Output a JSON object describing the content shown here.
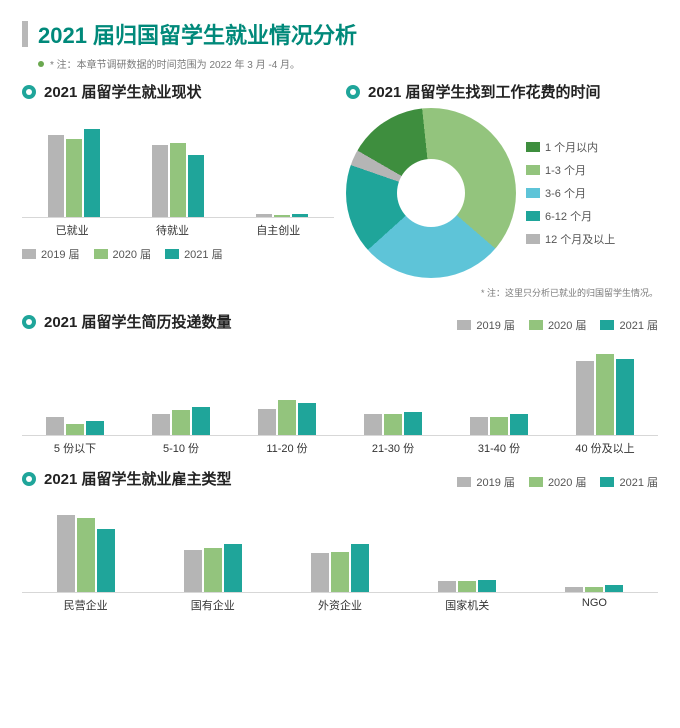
{
  "header": {
    "title": "2021 届归国留学生就业情况分析",
    "title_color": "#00897a",
    "bar_color": "#b8b8b8",
    "note_bullet": "#6aa84f",
    "note": "* 注：本章节调研数据的时间范围为 2022 年 3 月 -4 月。"
  },
  "colors": {
    "y2019": "#b5b5b5",
    "y2020": "#93c47d",
    "y2021": "#1fa59a",
    "dot": "#1fa59a"
  },
  "legend_years": {
    "a": "2019 届",
    "b": "2020 届",
    "c": "2021 届"
  },
  "chart1": {
    "title": "2021 届留学生就业现状",
    "max": 100,
    "categories": [
      "已就业",
      "待就业",
      "自主创业"
    ],
    "series": {
      "y2019": [
        82,
        72,
        3
      ],
      "y2020": [
        78,
        74,
        2
      ],
      "y2021": [
        88,
        62,
        3
      ]
    }
  },
  "chart2": {
    "title": "2021 届留学生找到工作花费的时间",
    "note": "* 注：这里只分析已就业的归国留学生情况。",
    "slices": [
      {
        "label": "1 个月以内",
        "pct": 15,
        "color": "#3e8e3e"
      },
      {
        "label": "1-3 个月",
        "pct": 38,
        "color": "#93c47d"
      },
      {
        "label": "3-6 个月",
        "pct": 27,
        "color": "#5ec4d8"
      },
      {
        "label": "6-12 个月",
        "pct": 17,
        "color": "#1fa59a"
      },
      {
        "label": "12 个月及以上",
        "pct": 3,
        "color": "#b5b5b5"
      }
    ]
  },
  "chart3": {
    "title": "2021 届留学生简历投递数量",
    "max": 50,
    "categories": [
      "5 份以下",
      "5-10 份",
      "11-20 份",
      "21-30 份",
      "31-40 份",
      "40 份及以上"
    ],
    "series": {
      "y2019": [
        10,
        12,
        15,
        12,
        10,
        42
      ],
      "y2020": [
        6,
        14,
        20,
        12,
        10,
        46
      ],
      "y2021": [
        8,
        16,
        18,
        13,
        12,
        43
      ]
    }
  },
  "chart4": {
    "title": "2021 届留学生就业雇主类型",
    "max": 50,
    "categories": [
      "民营企业",
      "国有企业",
      "外资企业",
      "国家机关",
      "NGO"
    ],
    "series": {
      "y2019": [
        44,
        24,
        22,
        6,
        3
      ],
      "y2020": [
        42,
        25,
        23,
        6,
        3
      ],
      "y2021": [
        36,
        27,
        27,
        7,
        4
      ]
    }
  }
}
